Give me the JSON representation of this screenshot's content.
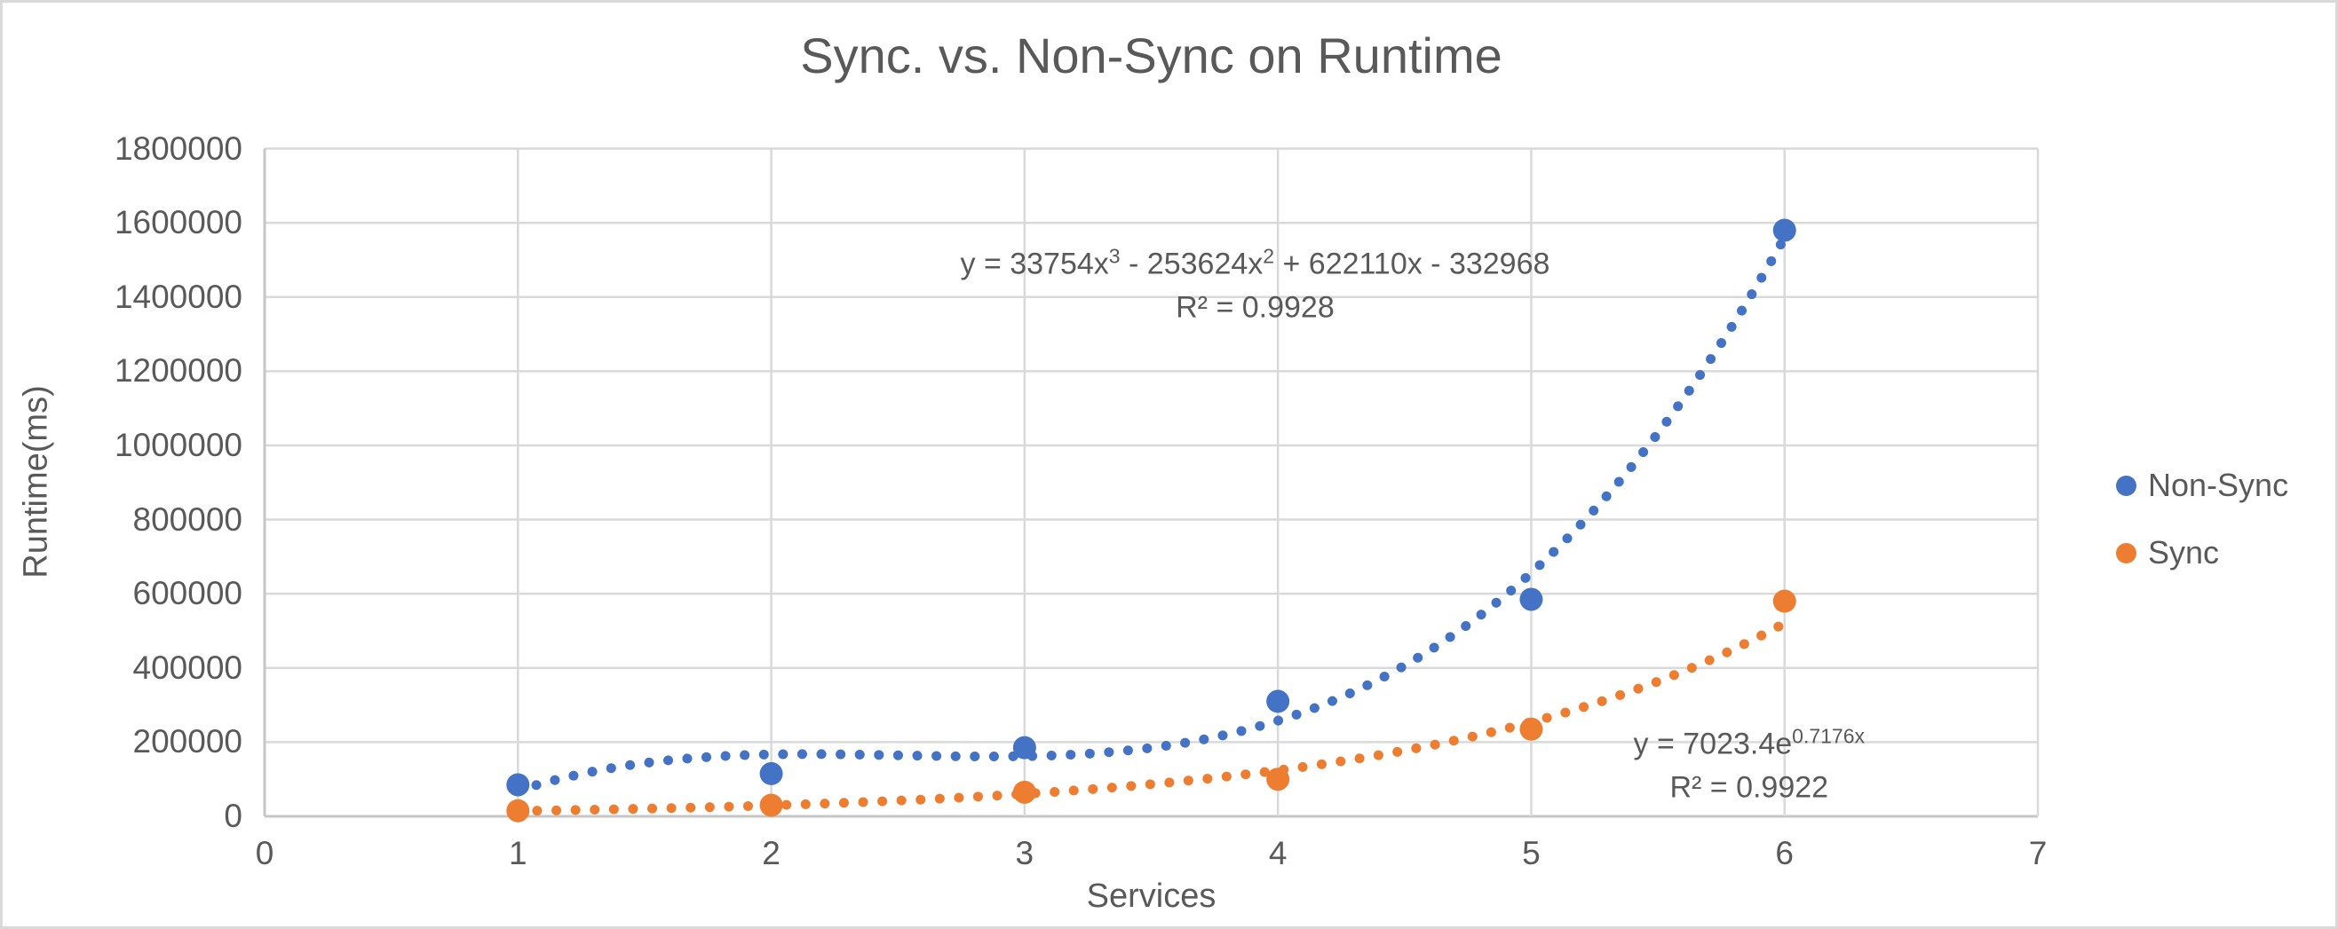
{
  "window": {
    "background": "#ffffff",
    "frame_border_color": "#d9d9d9",
    "text_color": "#595959",
    "gridline_color": "#d9d9d9",
    "axis_line_color": "#c6c6c6"
  },
  "chart_data": {
    "type": "scatter",
    "title": "Sync. vs. Non-Sync on Runtime",
    "xlabel": "Services",
    "ylabel": "Runtime(ms)",
    "xlim": [
      0,
      7
    ],
    "ylim": [
      0,
      1800000
    ],
    "grid": true,
    "legend_position": "right",
    "x_ticks": [
      "0",
      "1",
      "2",
      "3",
      "4",
      "5",
      "6",
      "7"
    ],
    "y_ticks": [
      "0",
      "200000",
      "400000",
      "600000",
      "800000",
      "1000000",
      "1200000",
      "1400000",
      "1600000",
      "1800000"
    ],
    "series": [
      {
        "name": "Non-Sync",
        "color": "#4472C4",
        "marker": "circle",
        "x": [
          1,
          2,
          3,
          4,
          5,
          6
        ],
        "y": [
          85000,
          115000,
          185000,
          310000,
          585000,
          1580000
        ],
        "trendline": {
          "type": "polynomial",
          "degree": 3,
          "coefficients": [
            33754,
            -253624,
            622110,
            -332968
          ],
          "range": [
            1,
            6
          ],
          "style": "dotted",
          "equation_rich": [
            {
              "t": "y = 33754x"
            },
            {
              "sup": "3"
            },
            {
              "t": " - 253624x"
            },
            {
              "sup": "2"
            },
            {
              "t": " + 622110x - 332968"
            }
          ],
          "r2": "R² = 0.9928",
          "label_anchor": {
            "x": 3.91,
            "y": 1440000
          }
        }
      },
      {
        "name": "Sync",
        "color": "#ED7D31",
        "marker": "circle",
        "x": [
          1,
          2,
          3,
          4,
          5,
          6
        ],
        "y": [
          15000,
          30000,
          65000,
          100000,
          235000,
          580000
        ],
        "trendline": {
          "type": "exponential",
          "coefficients_exp": {
            "a": 7023.4,
            "b": 0.7176
          },
          "range": [
            1,
            6
          ],
          "style": "dotted",
          "equation_rich": [
            {
              "t": "y = 7023.4e"
            },
            {
              "sup": "0.7176x"
            }
          ],
          "r2": "R² = 0.9922",
          "label_anchor": {
            "x": 5.86,
            "y": 146000
          }
        }
      }
    ]
  }
}
